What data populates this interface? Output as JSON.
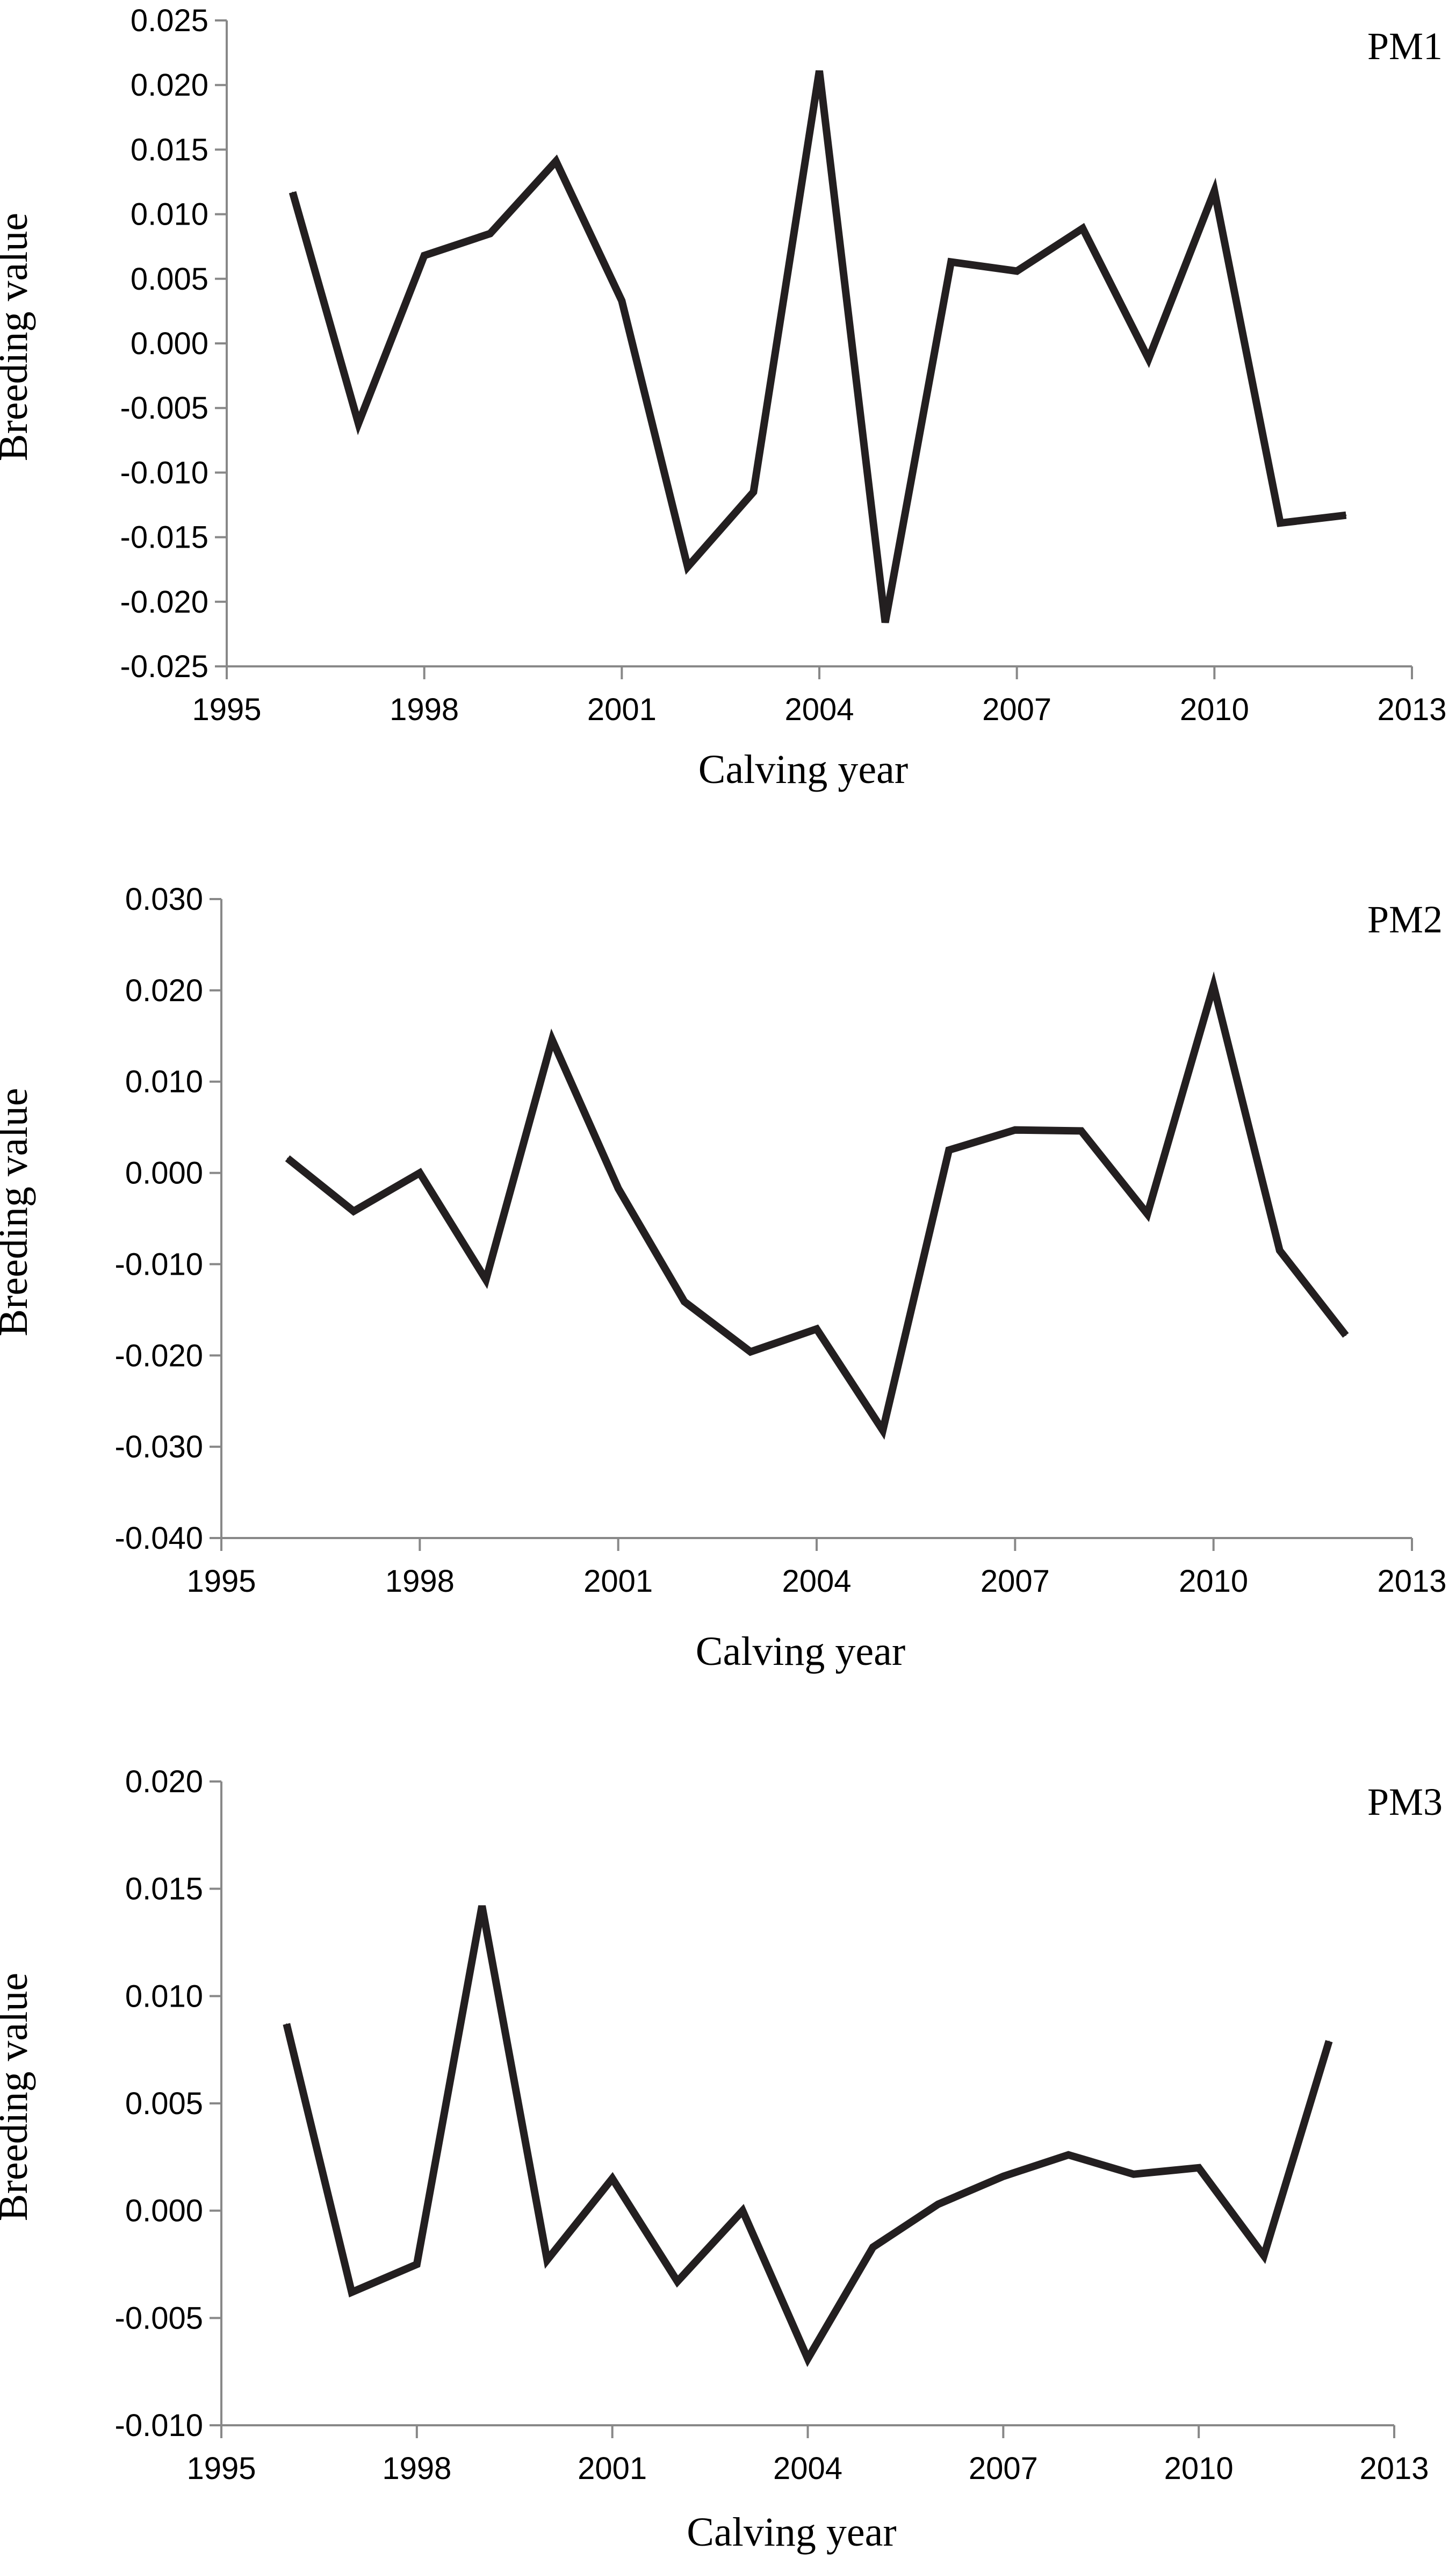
{
  "chart_data": [
    {
      "type": "line",
      "panel_label": "PM1",
      "xlabel": "Calving year",
      "ylabel": "Breeding value",
      "xlim": [
        1995,
        2013
      ],
      "xticks": [
        1995,
        1998,
        2001,
        2004,
        2007,
        2010,
        2013
      ],
      "xtick_labels": [
        "1995",
        "1998",
        "2001",
        "2004",
        "2007",
        "2010",
        "2013"
      ],
      "ylim": [
        -0.025,
        0.025
      ],
      "yticks": [
        -0.025,
        -0.02,
        -0.015,
        -0.01,
        -0.005,
        0,
        0.005,
        0.01,
        0.015,
        0.02,
        0.025
      ],
      "ytick_labels": [
        "-0.025",
        "-0.020",
        "-0.015",
        "-0.010",
        "-0.005",
        "0.000",
        "0.005",
        "0.010",
        "0.015",
        "0.020",
        "0.025"
      ],
      "grid": false,
      "series": [
        {
          "x": [
            1996,
            1997,
            1998,
            1999,
            2000,
            2001,
            2002,
            2003,
            2004,
            2005,
            2006,
            2007,
            2008,
            2009,
            2010,
            2011,
            2012
          ],
          "values": [
            0.0117,
            -0.0062,
            0.0068,
            0.0085,
            0.0141,
            0.0033,
            -0.0173,
            -0.0115,
            0.0211,
            -0.0216,
            0.0063,
            0.0056,
            0.0089,
            -0.0012,
            0.0118,
            -0.0139,
            -0.0133
          ]
        }
      ]
    },
    {
      "type": "line",
      "panel_label": "PM2",
      "xlabel": "Calving year",
      "ylabel": "Breeding value",
      "xlim": [
        1995,
        2013
      ],
      "xticks": [
        1995,
        1998,
        2001,
        2004,
        2007,
        2010,
        2013
      ],
      "xtick_labels": [
        "1995",
        "1998",
        "2001",
        "2004",
        "2007",
        "2010",
        "2013"
      ],
      "ylim": [
        -0.04,
        0.03
      ],
      "yticks": [
        -0.04,
        -0.03,
        -0.02,
        -0.01,
        0,
        0.01,
        0.02,
        0.03
      ],
      "ytick_labels": [
        "-0.040",
        "-0.030",
        "-0.020",
        "-0.010",
        "0.000",
        "0.010",
        "0.020",
        "0.030"
      ],
      "grid": false,
      "series": [
        {
          "x": [
            1996,
            1997,
            1998,
            1999,
            2000,
            2001,
            2002,
            2003,
            2004,
            2005,
            2006,
            2007,
            2008,
            2009,
            2010,
            2011,
            2012
          ],
          "values": [
            0.0016,
            -0.0042,
            0.0,
            -0.0117,
            0.0146,
            -0.0017,
            -0.0141,
            -0.0196,
            -0.0171,
            -0.0282,
            0.0025,
            0.0047,
            0.0046,
            -0.0045,
            0.0205,
            -0.0085,
            -0.0178
          ]
        }
      ]
    },
    {
      "type": "line",
      "panel_label": "PM3",
      "xlabel": "Calving year",
      "ylabel": "Breeding value",
      "xlim": [
        1995,
        2013
      ],
      "xticks": [
        1995,
        1998,
        2001,
        2004,
        2007,
        2010,
        2013
      ],
      "xtick_labels": [
        "1995",
        "1998",
        "2001",
        "2004",
        "2007",
        "2010",
        "2013"
      ],
      "ylim": [
        -0.01,
        0.02
      ],
      "yticks": [
        -0.01,
        -0.005,
        0,
        0.005,
        0.01,
        0.015,
        0.02
      ],
      "ytick_labels": [
        "-0.010",
        "-0.005",
        "0.000",
        "0.005",
        "0.010",
        "0.015",
        "0.020"
      ],
      "grid": false,
      "series": [
        {
          "x": [
            1996,
            1997,
            1998,
            1999,
            2000,
            2001,
            2002,
            2003,
            2004,
            2005,
            2006,
            2007,
            2008,
            2009,
            2010,
            2011,
            2012
          ],
          "values": [
            0.0087,
            -0.0038,
            -0.0025,
            0.0142,
            -0.0023,
            0.0015,
            -0.0033,
            0.0,
            -0.0069,
            -0.0017,
            0.0003,
            0.0016,
            0.0026,
            0.0017,
            0.002,
            -0.0021,
            0.0079
          ]
        }
      ]
    }
  ]
}
